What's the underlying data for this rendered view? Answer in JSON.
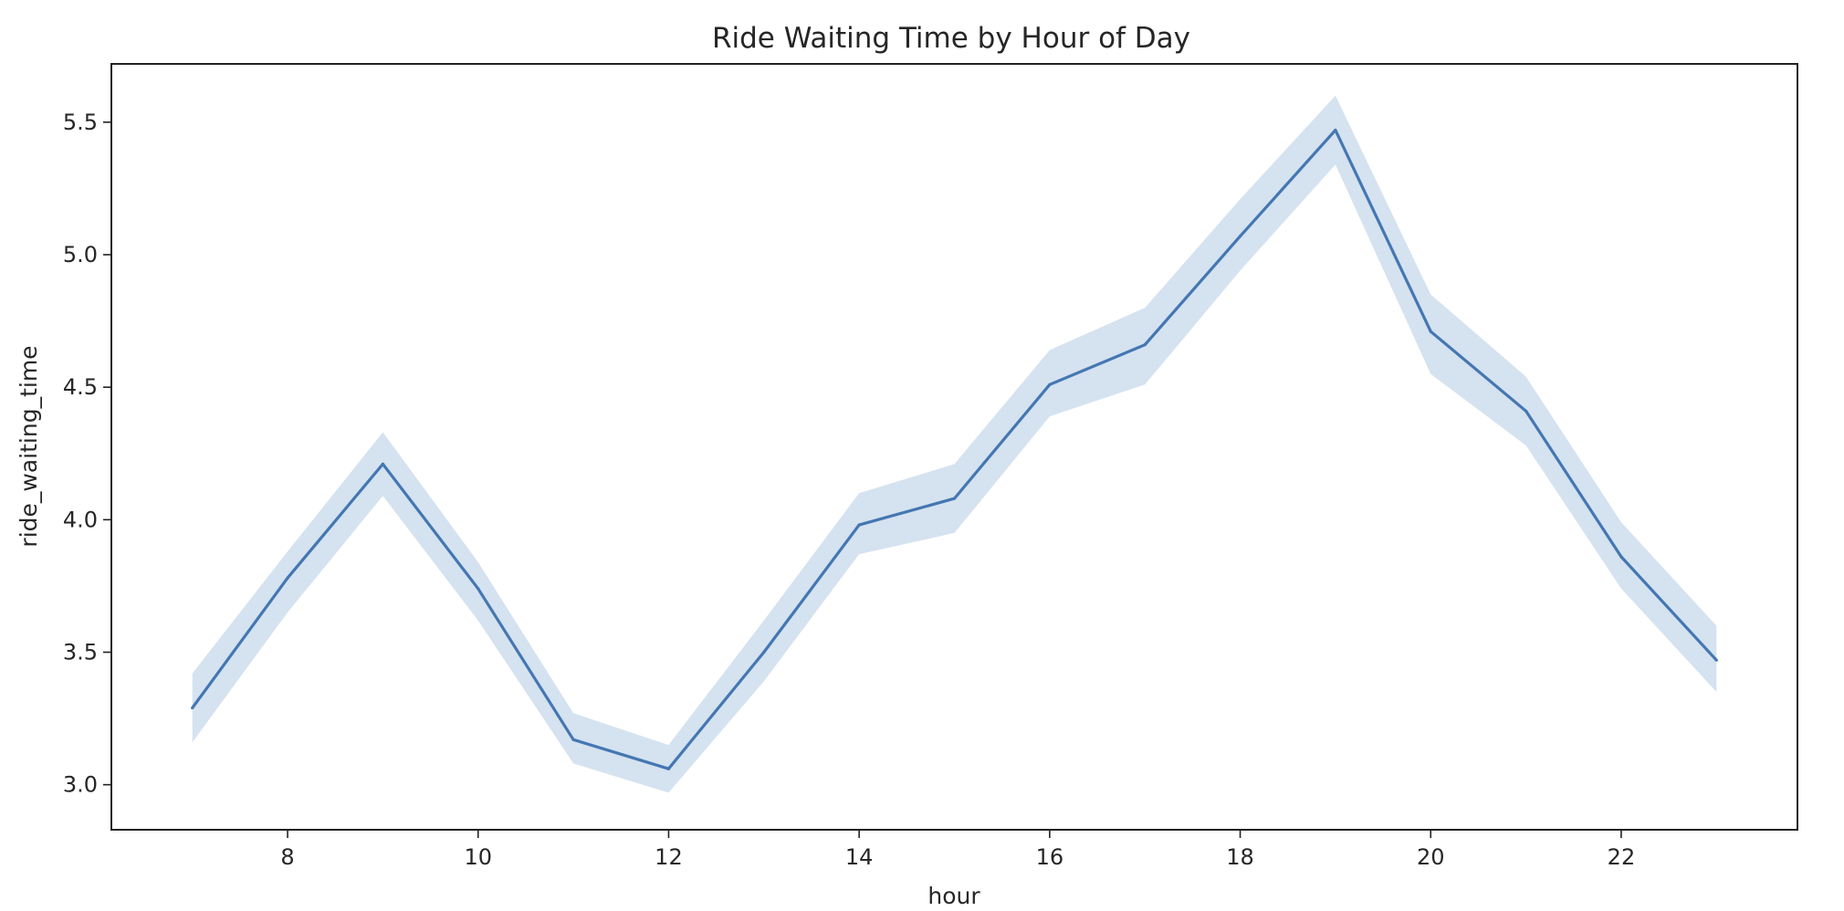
{
  "chart_data": {
    "type": "line",
    "title": "Ride Waiting Time by Hour of Day",
    "xlabel": "hour",
    "ylabel": "ride_waiting_time",
    "xlim": [
      6.15,
      23.85
    ],
    "ylim": [
      2.83,
      5.72
    ],
    "x_ticks": [
      8,
      10,
      12,
      14,
      16,
      18,
      20,
      22
    ],
    "y_ticks": [
      3.0,
      3.5,
      4.0,
      4.5,
      5.0,
      5.5
    ],
    "grid": false,
    "legend": "none",
    "series": [
      {
        "x": [
          7,
          8,
          9,
          10,
          11,
          12,
          13,
          14,
          15,
          16,
          17,
          18,
          19,
          20,
          21,
          22,
          23
        ],
        "y": [
          3.29,
          3.78,
          4.21,
          3.74,
          3.17,
          3.06,
          3.5,
          3.98,
          4.08,
          4.51,
          4.66,
          5.07,
          5.47,
          4.71,
          4.41,
          3.86,
          3.47
        ],
        "ci_lower": [
          3.16,
          3.65,
          4.09,
          3.62,
          3.08,
          2.97,
          3.39,
          3.87,
          3.95,
          4.39,
          4.51,
          4.94,
          5.34,
          4.55,
          4.28,
          3.74,
          3.35
        ],
        "ci_upper": [
          3.42,
          3.88,
          4.33,
          3.84,
          3.27,
          3.15,
          3.62,
          4.1,
          4.21,
          4.64,
          4.8,
          5.21,
          5.6,
          4.85,
          4.54,
          3.99,
          3.6
        ],
        "color": "#4477b2",
        "band_color": "#b3cae3"
      }
    ]
  }
}
